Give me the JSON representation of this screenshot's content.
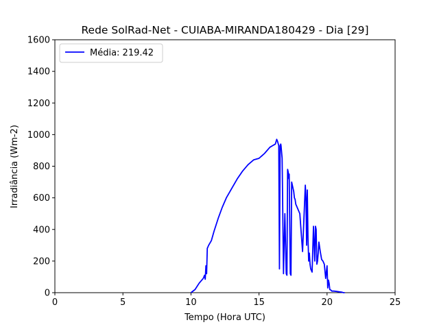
{
  "chart_data": {
    "type": "line",
    "title": "Rede SolRad-Net - CUIABA-MIRANDA180429 - Dia [29]",
    "xlabel": "Tempo (Hora UTC)",
    "ylabel": "Irradiância (Wm-2)",
    "xlim": [
      0,
      25
    ],
    "ylim": [
      0,
      1600
    ],
    "xticks": [
      0,
      5,
      10,
      15,
      20,
      25
    ],
    "yticks": [
      0,
      200,
      400,
      600,
      800,
      1000,
      1200,
      1400,
      1600
    ],
    "grid": false,
    "legend_position": "upper-left",
    "series": [
      {
        "name": "Média: 219.42",
        "color": "#0000ff",
        "x": [
          10.0,
          10.3,
          10.6,
          10.9,
          11.0,
          11.05,
          11.1,
          11.15,
          11.2,
          11.3,
          11.5,
          11.7,
          12.0,
          12.3,
          12.6,
          13.0,
          13.4,
          13.8,
          14.2,
          14.6,
          15.0,
          15.4,
          15.8,
          16.0,
          16.2,
          16.3,
          16.35,
          16.45,
          16.5,
          16.55,
          16.6,
          16.62,
          16.65,
          16.7,
          16.8,
          16.9,
          17.0,
          17.05,
          17.1,
          17.15,
          17.2,
          17.22,
          17.3,
          17.35,
          17.4,
          17.5,
          17.55,
          17.6,
          17.65,
          17.7,
          17.8,
          18.0,
          18.2,
          18.4,
          18.45,
          18.5,
          18.55,
          18.6,
          18.65,
          18.7,
          18.75,
          18.8,
          18.9,
          19.0,
          19.1,
          19.15,
          19.2,
          19.25,
          19.3,
          19.35,
          19.4,
          19.45,
          19.5,
          19.6,
          19.7,
          19.8,
          19.9,
          20.0,
          20.05,
          20.1,
          20.15,
          20.2,
          20.3,
          20.35,
          20.4,
          20.5,
          20.7,
          20.9,
          21.1,
          21.2,
          21.3
        ],
        "y": [
          0,
          20,
          60,
          90,
          110,
          85,
          170,
          120,
          280,
          300,
          330,
          390,
          470,
          540,
          600,
          660,
          720,
          770,
          810,
          840,
          850,
          880,
          920,
          930,
          940,
          970,
          960,
          930,
          150,
          930,
          940,
          930,
          900,
          850,
          120,
          500,
          120,
          110,
          780,
          760,
          720,
          750,
          120,
          110,
          700,
          660,
          640,
          600,
          590,
          560,
          540,
          500,
          260,
          680,
          600,
          300,
          650,
          350,
          200,
          250,
          180,
          150,
          130,
          420,
          200,
          420,
          400,
          180,
          200,
          250,
          320,
          290,
          260,
          210,
          200,
          180,
          90,
          170,
          30,
          80,
          60,
          20,
          15,
          10,
          10,
          10,
          8,
          5,
          3,
          0,
          0
        ]
      }
    ]
  }
}
